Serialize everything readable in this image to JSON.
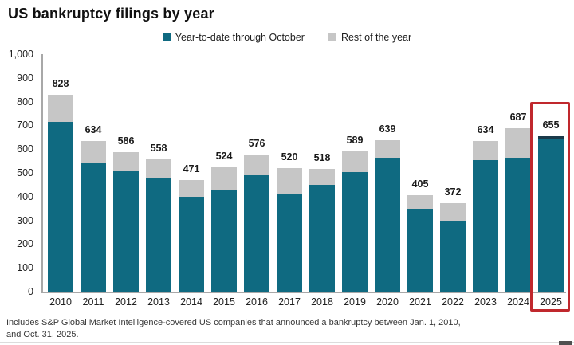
{
  "title": "US bankruptcy filings by year",
  "legend": {
    "items": [
      {
        "label": "Year-to-date through October",
        "color": "#0f6a81"
      },
      {
        "label": "Rest of the year",
        "color": "#c6c6c6"
      }
    ]
  },
  "chart_data": {
    "type": "bar",
    "stacked": true,
    "title": "US bankruptcy filings by year",
    "categories": [
      "2010",
      "2011",
      "2012",
      "2013",
      "2014",
      "2015",
      "2016",
      "2017",
      "2018",
      "2019",
      "2020",
      "2021",
      "2022",
      "2023",
      "2024",
      "2025"
    ],
    "series": [
      {
        "name": "Year-to-date through October",
        "color": "#0f6a81",
        "values": [
          715,
          545,
          510,
          480,
          400,
          430,
          490,
          410,
          450,
          505,
          565,
          350,
          300,
          555,
          565,
          655
        ]
      },
      {
        "name": "Rest of the year",
        "color": "#c6c6c6",
        "values": [
          113,
          89,
          76,
          78,
          71,
          94,
          86,
          110,
          68,
          84,
          74,
          55,
          72,
          79,
          122,
          0
        ]
      }
    ],
    "totals": [
      828,
      634,
      586,
      558,
      471,
      524,
      576,
      520,
      518,
      589,
      639,
      405,
      372,
      634,
      687,
      655
    ],
    "xlabel": "",
    "ylabel": "",
    "ylim": [
      0,
      1000
    ],
    "ytick_labels": [
      "1,000",
      "900",
      "800",
      "700",
      "600",
      "500",
      "400",
      "300",
      "200",
      "100",
      "0"
    ],
    "ytick_values": [
      1000,
      900,
      800,
      700,
      600,
      500,
      400,
      300,
      200,
      100,
      0
    ],
    "grid": false,
    "legend_position": "top-center",
    "highlight": {
      "category": "2025",
      "box_color": "#c0282d",
      "bar_cap_color": "#1a3a4a"
    }
  },
  "footer": {
    "line1": "Includes S&P Global Market Intelligence-covered US companies that announced a bankruptcy between Jan. 1, 2010,",
    "line2": "and Oct. 31, 2025."
  }
}
